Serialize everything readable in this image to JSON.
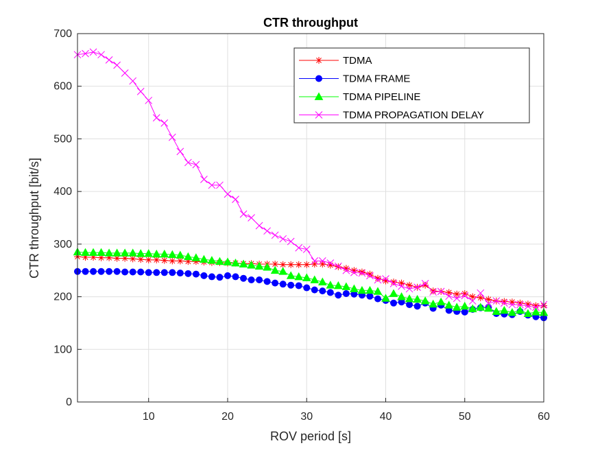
{
  "chart_data": {
    "type": "line",
    "title": "CTR throughput",
    "xlabel": "ROV period [s]",
    "ylabel": "CTR throughput [bit/s]",
    "xlim": [
      1,
      60
    ],
    "ylim": [
      0,
      700
    ],
    "xticks": [
      10,
      20,
      30,
      40,
      50,
      60
    ],
    "yticks": [
      0,
      100,
      200,
      300,
      400,
      500,
      600,
      700
    ],
    "grid": true,
    "legend_position": "top-right",
    "x": [
      1,
      2,
      3,
      4,
      5,
      6,
      7,
      8,
      9,
      10,
      11,
      12,
      13,
      14,
      15,
      16,
      17,
      18,
      19,
      20,
      21,
      22,
      23,
      24,
      25,
      26,
      27,
      28,
      29,
      30,
      31,
      32,
      33,
      34,
      35,
      36,
      37,
      38,
      39,
      40,
      41,
      42,
      43,
      44,
      45,
      46,
      47,
      48,
      49,
      50,
      51,
      52,
      53,
      54,
      55,
      56,
      57,
      58,
      59,
      60
    ],
    "series": [
      {
        "name": "TDMA",
        "color": "#ff0000",
        "marker": "asterisk",
        "values": [
          276,
          275,
          275,
          274,
          274,
          273,
          273,
          272,
          271,
          270,
          270,
          269,
          268,
          268,
          267,
          267,
          266,
          265,
          265,
          264,
          264,
          263,
          263,
          262,
          262,
          262,
          261,
          261,
          261,
          261,
          262,
          262,
          260,
          257,
          254,
          250,
          247,
          243,
          235,
          230,
          228,
          226,
          222,
          218,
          222,
          211,
          210,
          208,
          205,
          206,
          200,
          198,
          195,
          192,
          191,
          190,
          188,
          186,
          183,
          183
        ]
      },
      {
        "name": "TDMA FRAME",
        "color": "#0000ff",
        "marker": "circle",
        "values": [
          248,
          248,
          248,
          248,
          248,
          248,
          247,
          247,
          247,
          246,
          246,
          246,
          246,
          245,
          244,
          243,
          240,
          238,
          237,
          240,
          238,
          235,
          232,
          232,
          229,
          226,
          224,
          222,
          221,
          217,
          213,
          211,
          208,
          203,
          206,
          205,
          203,
          201,
          196,
          193,
          188,
          190,
          185,
          182,
          188,
          178,
          184,
          174,
          172,
          171,
          176,
          179,
          180,
          168,
          167,
          166,
          172,
          165,
          162,
          160
        ]
      },
      {
        "name": "TDMA PIPELINE",
        "color": "#00ff00",
        "marker": "triangle",
        "values": [
          285,
          284,
          284,
          284,
          283,
          283,
          283,
          283,
          282,
          282,
          281,
          281,
          280,
          279,
          276,
          274,
          271,
          269,
          267,
          266,
          264,
          262,
          260,
          258,
          256,
          250,
          248,
          240,
          238,
          236,
          232,
          228,
          222,
          221,
          219,
          215,
          212,
          212,
          210,
          197,
          206,
          200,
          196,
          195,
          192,
          186,
          190,
          184,
          180,
          182,
          177,
          180,
          178,
          172,
          174,
          170,
          174,
          168,
          171,
          170
        ]
      },
      {
        "name": "TDMA PROPAGATION DELAY",
        "color": "#ff00ff",
        "marker": "x",
        "values": [
          660,
          662,
          665,
          660,
          650,
          640,
          625,
          610,
          590,
          573,
          540,
          530,
          503,
          476,
          455,
          451,
          423,
          412,
          412,
          395,
          385,
          357,
          350,
          335,
          325,
          317,
          310,
          305,
          293,
          290,
          268,
          268,
          264,
          258,
          250,
          246,
          245,
          240,
          232,
          234,
          225,
          220,
          215,
          218,
          225,
          209,
          210,
          201,
          197,
          202,
          192,
          207,
          187,
          192,
          188,
          185,
          185,
          182,
          180,
          185
        ]
      }
    ]
  }
}
